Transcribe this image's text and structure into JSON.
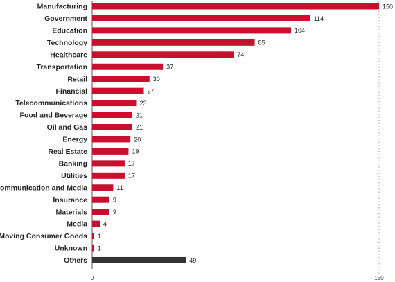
{
  "chart_data": {
    "type": "bar",
    "orientation": "horizontal",
    "categories": [
      "Manufacturing",
      "Government",
      "Education",
      "Technology",
      "Healthcare",
      "Transportation",
      "Retail",
      "Financial",
      "Telecommunications",
      "Food and Beverage",
      "Oil and Gas",
      "Energy",
      "Real Estate",
      "Banking",
      "Utilities",
      "Communication and Media",
      "Insurance",
      "Materials",
      "Media",
      "Fast-Moving Consumer Goods",
      "Unknown",
      "Others"
    ],
    "values": [
      150,
      114,
      104,
      85,
      74,
      37,
      30,
      27,
      23,
      21,
      21,
      20,
      19,
      17,
      17,
      11,
      9,
      9,
      4,
      1,
      1,
      49
    ],
    "value_labels": [
      "150",
      "114",
      "104",
      "85",
      "74",
      "37",
      "30",
      "27",
      "23",
      "21",
      "21",
      "20",
      "19",
      "17",
      "17",
      "11",
      "9",
      "9",
      "4",
      "1",
      "1",
      "49"
    ],
    "xlim": [
      0,
      150
    ],
    "x_ticks": [
      "0",
      "150"
    ],
    "bar_colors": {
      "default": "#c8102e",
      "Others": "#333333"
    },
    "grid": false,
    "reference_line_at_max": true,
    "title": "",
    "xlabel": "",
    "ylabel": ""
  }
}
